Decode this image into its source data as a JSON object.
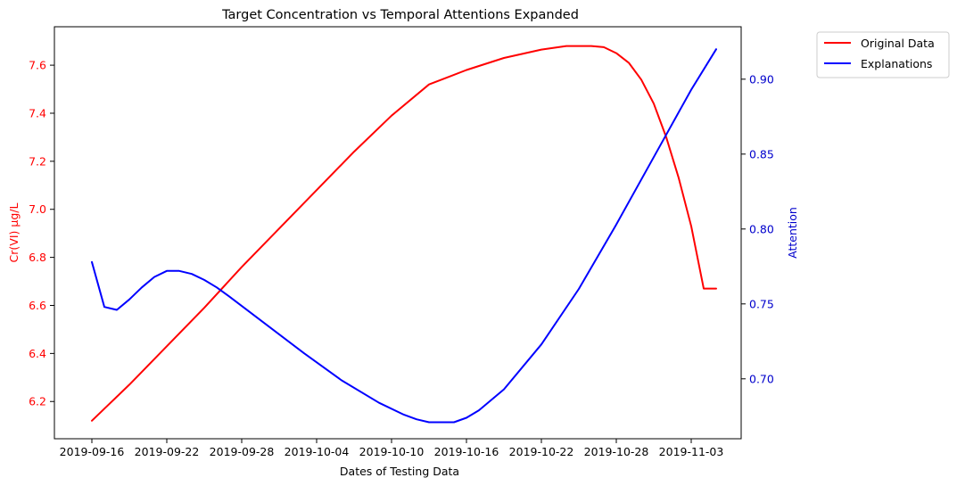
{
  "chart_data": {
    "type": "line",
    "title": "Target Concentration vs Temporal Attentions Expanded",
    "xlabel": "Dates of Testing Data",
    "ylabel_left": "Cr(VI) μg/L",
    "ylabel_right": "Attention",
    "left_color": "#ff0000",
    "right_color": "#0000cc",
    "legend_position": "upper-right-outside",
    "grid": false,
    "x_ticks": [
      "2019-09-16",
      "2019-09-22",
      "2019-09-28",
      "2019-10-04",
      "2019-10-10",
      "2019-10-16",
      "2019-10-22",
      "2019-10-28",
      "2019-11-03"
    ],
    "xlim": [
      "2019-09-13",
      "2019-11-07"
    ],
    "ylim_left": [
      6.045,
      7.76
    ],
    "yticks_left": [
      "6.2",
      "6.4",
      "6.6",
      "6.8",
      "7.0",
      "7.2",
      "7.4",
      "7.6"
    ],
    "ylim_right": [
      0.66,
      0.935
    ],
    "yticks_right": [
      "0.70",
      "0.75",
      "0.80",
      "0.85",
      "0.90"
    ],
    "series": [
      {
        "name": "Original Data",
        "axis": "left",
        "color": "#ff0000",
        "x": [
          "2019-09-16",
          "2019-09-19",
          "2019-09-22",
          "2019-09-25",
          "2019-09-28",
          "2019-10-01",
          "2019-10-04",
          "2019-10-07",
          "2019-10-10",
          "2019-10-13",
          "2019-10-16",
          "2019-10-19",
          "2019-10-22",
          "2019-10-24",
          "2019-10-26",
          "2019-10-27",
          "2019-10-28",
          "2019-10-29",
          "2019-10-30",
          "2019-10-31",
          "2019-11-01",
          "2019-11-02",
          "2019-11-03",
          "2019-11-04",
          "2019-11-05"
        ],
        "y": [
          6.12,
          6.27,
          6.43,
          6.59,
          6.76,
          6.92,
          7.08,
          7.24,
          7.39,
          7.52,
          7.58,
          7.63,
          7.665,
          7.68,
          7.68,
          7.675,
          7.65,
          7.61,
          7.54,
          7.44,
          7.3,
          7.13,
          6.93,
          6.67,
          6.67
        ]
      },
      {
        "name": "Explanations",
        "axis": "right",
        "color": "#0000ff",
        "x": [
          "2019-09-16",
          "2019-09-17",
          "2019-09-18",
          "2019-09-19",
          "2019-09-20",
          "2019-09-21",
          "2019-09-22",
          "2019-09-23",
          "2019-09-24",
          "2019-09-25",
          "2019-09-26",
          "2019-09-27",
          "2019-09-30",
          "2019-10-03",
          "2019-10-06",
          "2019-10-09",
          "2019-10-11",
          "2019-10-12",
          "2019-10-13",
          "2019-10-14",
          "2019-10-15",
          "2019-10-16",
          "2019-10-17",
          "2019-10-19",
          "2019-10-22",
          "2019-10-25",
          "2019-10-28",
          "2019-10-31",
          "2019-11-03",
          "2019-11-05"
        ],
        "y": [
          0.778,
          0.748,
          0.746,
          0.753,
          0.761,
          0.768,
          0.772,
          0.772,
          0.77,
          0.766,
          0.761,
          0.755,
          0.736,
          0.717,
          0.699,
          0.684,
          0.676,
          0.673,
          0.671,
          0.671,
          0.671,
          0.674,
          0.679,
          0.693,
          0.723,
          0.76,
          0.803,
          0.848,
          0.893,
          0.92
        ]
      }
    ]
  }
}
